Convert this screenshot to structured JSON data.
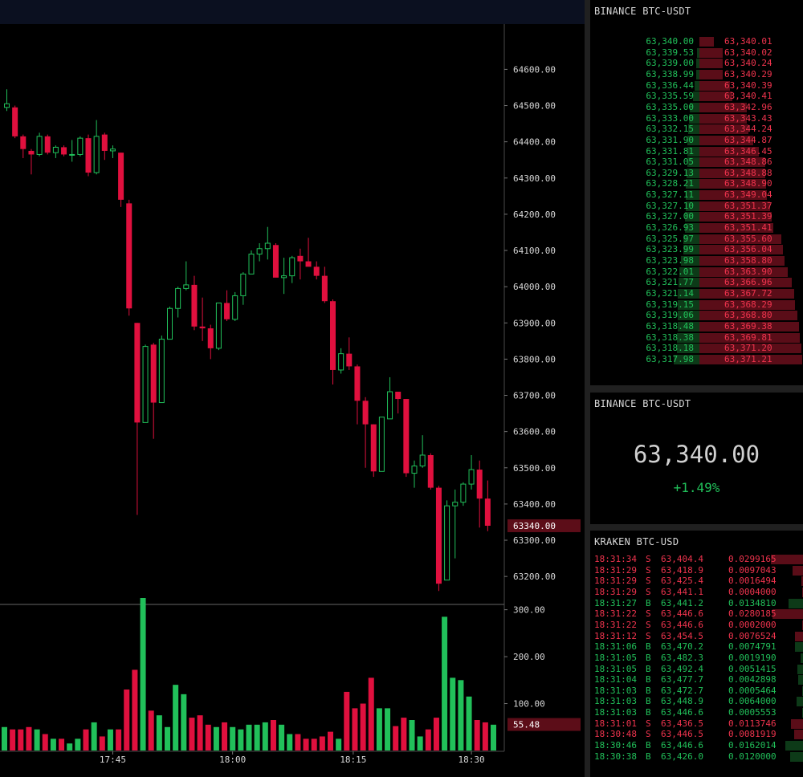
{
  "colors": {
    "up": "#21c05a",
    "down": "#e0103e",
    "bid_bar": "#0d3a18",
    "ask_bar": "#5a0d18",
    "axis_text": "#d8d8d8",
    "highlight_label": "#5c0d18"
  },
  "chart": {
    "price_axis_ticks": [
      "64600.00",
      "64500.00",
      "64400.00",
      "64300.00",
      "64200.00",
      "64100.00",
      "64000.00",
      "63900.00",
      "63800.00",
      "63700.00",
      "63600.00",
      "63500.00",
      "63400.00",
      "63300.00",
      "63200.00"
    ],
    "current_price_label": "63340.00",
    "volume_axis_ticks": [
      "300.00",
      "200.00",
      "100.00"
    ],
    "current_volume_label": "55.48",
    "time_axis_ticks": [
      "17:45",
      "18:00",
      "18:15",
      "18:30"
    ]
  },
  "chart_data": {
    "type": "candlestick",
    "price_range": [
      63125,
      64725
    ],
    "volume_range": [
      0,
      325
    ],
    "candles": [
      {
        "o": 64495,
        "h": 64545,
        "l": 64485,
        "c": 64505
      },
      {
        "o": 64495,
        "h": 64500,
        "l": 64410,
        "c": 64415
      },
      {
        "o": 64415,
        "h": 64420,
        "l": 64355,
        "c": 64380
      },
      {
        "o": 64375,
        "h": 64380,
        "l": 64310,
        "c": 64365
      },
      {
        "o": 64365,
        "h": 64425,
        "l": 64360,
        "c": 64415
      },
      {
        "o": 64415,
        "h": 64420,
        "l": 64365,
        "c": 64370
      },
      {
        "o": 64370,
        "h": 64390,
        "l": 64355,
        "c": 64385
      },
      {
        "o": 64385,
        "h": 64390,
        "l": 64360,
        "c": 64365
      },
      {
        "o": 64365,
        "h": 64405,
        "l": 64345,
        "c": 64365
      },
      {
        "o": 64365,
        "h": 64415,
        "l": 64360,
        "c": 64410
      },
      {
        "o": 64410,
        "h": 64420,
        "l": 64305,
        "c": 64315
      },
      {
        "o": 64315,
        "h": 64460,
        "l": 64310,
        "c": 64415
      },
      {
        "o": 64420,
        "h": 64425,
        "l": 64350,
        "c": 64375
      },
      {
        "o": 64375,
        "h": 64390,
        "l": 64355,
        "c": 64380
      },
      {
        "o": 64370,
        "h": 64370,
        "l": 64220,
        "c": 64240
      },
      {
        "o": 64230,
        "h": 64240,
        "l": 63920,
        "c": 63940
      },
      {
        "o": 63900,
        "h": 63900,
        "l": 63370,
        "c": 63625
      },
      {
        "o": 63625,
        "h": 63840,
        "l": 63625,
        "c": 63835
      },
      {
        "o": 63840,
        "h": 63845,
        "l": 63580,
        "c": 63680
      },
      {
        "o": 63680,
        "h": 63865,
        "l": 63680,
        "c": 63855
      },
      {
        "o": 63855,
        "h": 63945,
        "l": 63855,
        "c": 63940
      },
      {
        "o": 63940,
        "h": 64000,
        "l": 63915,
        "c": 63995
      },
      {
        "o": 63995,
        "h": 64070,
        "l": 63990,
        "c": 64005
      },
      {
        "o": 64005,
        "h": 64030,
        "l": 63880,
        "c": 63890
      },
      {
        "o": 63890,
        "h": 63970,
        "l": 63850,
        "c": 63885
      },
      {
        "o": 63885,
        "h": 63895,
        "l": 63800,
        "c": 63830
      },
      {
        "o": 63830,
        "h": 63950,
        "l": 63825,
        "c": 63955
      },
      {
        "o": 63955,
        "h": 63990,
        "l": 63905,
        "c": 63910
      },
      {
        "o": 63910,
        "h": 63985,
        "l": 63905,
        "c": 63975
      },
      {
        "o": 63975,
        "h": 64040,
        "l": 63950,
        "c": 64035
      },
      {
        "o": 64035,
        "h": 64100,
        "l": 64035,
        "c": 64090
      },
      {
        "o": 64090,
        "h": 64120,
        "l": 64070,
        "c": 64105
      },
      {
        "o": 64105,
        "h": 64165,
        "l": 64075,
        "c": 64120
      },
      {
        "o": 64115,
        "h": 64120,
        "l": 64030,
        "c": 64025
      },
      {
        "o": 64025,
        "h": 64080,
        "l": 63980,
        "c": 64030
      },
      {
        "o": 64030,
        "h": 64085,
        "l": 64010,
        "c": 64080
      },
      {
        "o": 64085,
        "h": 64105,
        "l": 64020,
        "c": 64070
      },
      {
        "o": 64070,
        "h": 64135,
        "l": 64060,
        "c": 64055
      },
      {
        "o": 64055,
        "h": 64070,
        "l": 64020,
        "c": 64030
      },
      {
        "o": 64030,
        "h": 64055,
        "l": 63955,
        "c": 63960
      },
      {
        "o": 63960,
        "h": 63965,
        "l": 63730,
        "c": 63770
      },
      {
        "o": 63770,
        "h": 63830,
        "l": 63760,
        "c": 63815
      },
      {
        "o": 63815,
        "h": 63860,
        "l": 63770,
        "c": 63780
      },
      {
        "o": 63780,
        "h": 63785,
        "l": 63620,
        "c": 63685
      },
      {
        "o": 63685,
        "h": 63695,
        "l": 63500,
        "c": 63620
      },
      {
        "o": 63620,
        "h": 63620,
        "l": 63475,
        "c": 63490
      },
      {
        "o": 63490,
        "h": 63640,
        "l": 63490,
        "c": 63640
      },
      {
        "o": 63635,
        "h": 63750,
        "l": 63635,
        "c": 63710
      },
      {
        "o": 63710,
        "h": 63710,
        "l": 63650,
        "c": 63690
      },
      {
        "o": 63690,
        "h": 63690,
        "l": 63475,
        "c": 63485
      },
      {
        "o": 63485,
        "h": 63520,
        "l": 63445,
        "c": 63505
      },
      {
        "o": 63505,
        "h": 63590,
        "l": 63500,
        "c": 63535
      },
      {
        "o": 63535,
        "h": 63540,
        "l": 63440,
        "c": 63445
      },
      {
        "o": 63445,
        "h": 63450,
        "l": 63160,
        "c": 63180
      },
      {
        "o": 63190,
        "h": 63410,
        "l": 63190,
        "c": 63395
      },
      {
        "o": 63395,
        "h": 63440,
        "l": 63250,
        "c": 63405
      },
      {
        "o": 63405,
        "h": 63460,
        "l": 63395,
        "c": 63455
      },
      {
        "o": 63455,
        "h": 63535,
        "l": 63440,
        "c": 63495
      },
      {
        "o": 63495,
        "h": 63520,
        "l": 63335,
        "c": 63415
      },
      {
        "o": 63415,
        "h": 63465,
        "l": 63325,
        "c": 63340
      }
    ],
    "volumes": [
      50,
      45,
      45,
      50,
      45,
      35,
      25,
      25,
      15,
      25,
      45,
      60,
      30,
      45,
      45,
      130,
      172,
      325,
      85,
      75,
      50,
      140,
      120,
      70,
      75,
      55,
      50,
      60,
      50,
      45,
      55,
      55,
      60,
      65,
      55,
      35,
      35,
      25,
      25,
      30,
      40,
      25,
      125,
      90,
      100,
      155,
      90,
      90,
      52,
      70,
      65,
      30,
      45,
      70,
      285,
      155,
      150,
      115,
      65,
      60,
      55
    ]
  },
  "orderbook": {
    "title": "BINANCE BTC-USDT",
    "rows": [
      {
        "bid": "63,340.00",
        "ask": "63,340.01",
        "bid_depth": 0.0,
        "ask_depth": 0.14
      },
      {
        "bid": "63,339.53",
        "ask": "63,340.02",
        "bid_depth": 0.03,
        "ask_depth": 0.23
      },
      {
        "bid": "63,339.00",
        "ask": "63,340.24",
        "bid_depth": 0.04,
        "ask_depth": 0.23
      },
      {
        "bid": "63,338.99",
        "ask": "63,340.29",
        "bid_depth": 0.04,
        "ask_depth": 0.23
      },
      {
        "bid": "63,336.44",
        "ask": "63,340.39",
        "bid_depth": 0.06,
        "ask_depth": 0.3
      },
      {
        "bid": "63,335.59",
        "ask": "63,340.41",
        "bid_depth": 0.08,
        "ask_depth": 0.32
      },
      {
        "bid": "63,335.00",
        "ask": "63,342.96",
        "bid_depth": 0.12,
        "ask_depth": 0.46
      },
      {
        "bid": "63,333.00",
        "ask": "63,343.43",
        "bid_depth": 0.13,
        "ask_depth": 0.46
      },
      {
        "bid": "63,332.15",
        "ask": "63,344.24",
        "bid_depth": 0.14,
        "ask_depth": 0.48
      },
      {
        "bid": "63,331.90",
        "ask": "63,344.87",
        "bid_depth": 0.15,
        "ask_depth": 0.52
      },
      {
        "bid": "63,331.81",
        "ask": "63,346.45",
        "bid_depth": 0.15,
        "ask_depth": 0.58
      },
      {
        "bid": "63,331.05",
        "ask": "63,348.86",
        "bid_depth": 0.15,
        "ask_depth": 0.64
      },
      {
        "bid": "63,329.13",
        "ask": "63,348.88",
        "bid_depth": 0.16,
        "ask_depth": 0.64
      },
      {
        "bid": "63,328.21",
        "ask": "63,348.90",
        "bid_depth": 0.17,
        "ask_depth": 0.65
      },
      {
        "bid": "63,327.11",
        "ask": "63,349.04",
        "bid_depth": 0.17,
        "ask_depth": 0.66
      },
      {
        "bid": "63,327.10",
        "ask": "63,351.37",
        "bid_depth": 0.17,
        "ask_depth": 0.69
      },
      {
        "bid": "63,327.00",
        "ask": "63,351.39",
        "bid_depth": 0.18,
        "ask_depth": 0.7
      },
      {
        "bid": "63,326.93",
        "ask": "63,351.41",
        "bid_depth": 0.18,
        "ask_depth": 0.72
      },
      {
        "bid": "63,325.97",
        "ask": "63,355.60",
        "bid_depth": 0.2,
        "ask_depth": 0.8
      },
      {
        "bid": "63,323.99",
        "ask": "63,356.04",
        "bid_depth": 0.2,
        "ask_depth": 0.81
      },
      {
        "bid": "63,323.98",
        "ask": "63,358.80",
        "bid_depth": 0.23,
        "ask_depth": 0.83
      },
      {
        "bid": "63,322.01",
        "ask": "63,363.90",
        "bid_depth": 0.25,
        "ask_depth": 0.86
      },
      {
        "bid": "63,321.77",
        "ask": "63,366.96",
        "bid_depth": 0.26,
        "ask_depth": 0.9
      },
      {
        "bid": "63,321.14",
        "ask": "63,367.72",
        "bid_depth": 0.27,
        "ask_depth": 0.92
      },
      {
        "bid": "63,319.15",
        "ask": "63,368.29",
        "bid_depth": 0.27,
        "ask_depth": 0.93
      },
      {
        "bid": "63,319.06",
        "ask": "63,368.80",
        "bid_depth": 0.27,
        "ask_depth": 0.95
      },
      {
        "bid": "63,318.48",
        "ask": "63,369.38",
        "bid_depth": 0.27,
        "ask_depth": 0.97
      },
      {
        "bid": "63,318.38",
        "ask": "63,369.81",
        "bid_depth": 0.28,
        "ask_depth": 0.98
      },
      {
        "bid": "63,318.18",
        "ask": "63,371.20",
        "bid_depth": 0.28,
        "ask_depth": 0.99
      },
      {
        "bid": "63,317.98",
        "ask": "63,371.21",
        "bid_depth": 0.32,
        "ask_depth": 1.0
      }
    ]
  },
  "ticker": {
    "title": "BINANCE BTC-USDT",
    "price": "63,340.00",
    "change": "+1.49%"
  },
  "trades": {
    "title": "KRAKEN BTC-USD",
    "rows": [
      {
        "time": "18:31:34",
        "side": "S",
        "price": "63,404.4",
        "size": "0.0299165",
        "bar": 1.0
      },
      {
        "time": "18:31:29",
        "side": "S",
        "price": "63,418.9",
        "size": "0.0097043",
        "bar": 0.33
      },
      {
        "time": "18:31:29",
        "side": "S",
        "price": "63,425.4",
        "size": "0.0016494",
        "bar": 0.06
      },
      {
        "time": "18:31:29",
        "side": "S",
        "price": "63,441.1",
        "size": "0.0004000",
        "bar": 0.02
      },
      {
        "time": "18:31:27",
        "side": "B",
        "price": "63,441.2",
        "size": "0.0134810",
        "bar": 0.45
      },
      {
        "time": "18:31:22",
        "side": "S",
        "price": "63,446.6",
        "size": "0.0280185",
        "bar": 0.94
      },
      {
        "time": "18:31:22",
        "side": "S",
        "price": "63,446.6",
        "size": "0.0002000",
        "bar": 0.02
      },
      {
        "time": "18:31:12",
        "side": "S",
        "price": "63,454.5",
        "size": "0.0076524",
        "bar": 0.26
      },
      {
        "time": "18:31:06",
        "side": "B",
        "price": "63,470.2",
        "size": "0.0074791",
        "bar": 0.25
      },
      {
        "time": "18:31:05",
        "side": "B",
        "price": "63,482.3",
        "size": "0.0019190",
        "bar": 0.07
      },
      {
        "time": "18:31:05",
        "side": "B",
        "price": "63,492.4",
        "size": "0.0051415",
        "bar": 0.17
      },
      {
        "time": "18:31:04",
        "side": "B",
        "price": "63,477.7",
        "size": "0.0042898",
        "bar": 0.14
      },
      {
        "time": "18:31:03",
        "side": "B",
        "price": "63,472.7",
        "size": "0.0005464",
        "bar": 0.02
      },
      {
        "time": "18:31:03",
        "side": "B",
        "price": "63,448.9",
        "size": "0.0064000",
        "bar": 0.21
      },
      {
        "time": "18:31:03",
        "side": "B",
        "price": "63,446.6",
        "size": "0.0005553",
        "bar": 0.02
      },
      {
        "time": "18:31:01",
        "side": "S",
        "price": "63,436.5",
        "size": "0.0113746",
        "bar": 0.38
      },
      {
        "time": "18:30:48",
        "side": "S",
        "price": "63,446.5",
        "size": "0.0081919",
        "bar": 0.27
      },
      {
        "time": "18:30:46",
        "side": "B",
        "price": "63,446.6",
        "size": "0.0162014",
        "bar": 0.54
      },
      {
        "time": "18:30:38",
        "side": "B",
        "price": "63,426.0",
        "size": "0.0120000",
        "bar": 0.4
      }
    ]
  }
}
